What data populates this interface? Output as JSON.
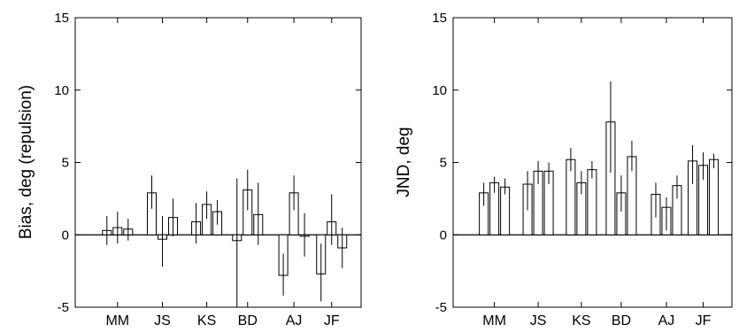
{
  "chart_data": [
    {
      "type": "bar",
      "ylabel": "Bias, deg (repulsion)",
      "xlabel": "",
      "ylim": [
        -5,
        15
      ],
      "yticks": [
        -5,
        0,
        5,
        10,
        15
      ],
      "categories": [
        "MM",
        "JS",
        "KS",
        "BD",
        "AJ",
        "JF"
      ],
      "bars_per_category": 3,
      "values": [
        [
          0.3,
          0.5,
          0.4
        ],
        [
          2.9,
          -0.3,
          1.2
        ],
        [
          0.9,
          2.1,
          1.6
        ],
        [
          -0.4,
          3.1,
          1.4
        ],
        [
          -2.8,
          2.9,
          -0.1
        ],
        [
          -2.7,
          0.9,
          -0.9
        ]
      ],
      "errors": [
        [
          [
            -0.7,
            1.3
          ],
          [
            -0.6,
            1.6
          ],
          [
            -0.4,
            1.1
          ]
        ],
        [
          [
            1.8,
            4.1
          ],
          [
            -2.2,
            1.3
          ],
          [
            -0.1,
            2.5
          ]
        ],
        [
          [
            -0.6,
            2.2
          ],
          [
            1.1,
            3.0
          ],
          [
            0.7,
            2.4
          ]
        ],
        [
          [
            -5.0,
            3.9
          ],
          [
            1.7,
            4.5
          ],
          [
            -0.7,
            3.6
          ]
        ],
        [
          [
            -4.2,
            -1.3
          ],
          [
            1.7,
            4.1
          ],
          [
            -1.5,
            1.5
          ]
        ],
        [
          [
            -4.6,
            -0.6
          ],
          [
            -0.7,
            2.8
          ],
          [
            -2.3,
            0.5
          ]
        ]
      ]
    },
    {
      "type": "bar",
      "ylabel": "JND, deg",
      "xlabel": "",
      "ylim": [
        -5,
        15
      ],
      "yticks": [
        -5,
        0,
        5,
        10,
        15
      ],
      "categories": [
        "MM",
        "JS",
        "KS",
        "BD",
        "AJ",
        "JF"
      ],
      "bars_per_category": 3,
      "values": [
        [
          2.9,
          3.6,
          3.3
        ],
        [
          3.5,
          4.4,
          4.4
        ],
        [
          5.2,
          3.6,
          4.5
        ],
        [
          7.8,
          2.9,
          5.4
        ],
        [
          2.8,
          1.9,
          3.4
        ],
        [
          5.1,
          4.8,
          5.2
        ]
      ],
      "errors": [
        [
          [
            2.0,
            3.6
          ],
          [
            2.9,
            4.0
          ],
          [
            2.8,
            3.9
          ]
        ],
        [
          [
            1.7,
            4.4
          ],
          [
            3.5,
            5.1
          ],
          [
            3.5,
            5.0
          ]
        ],
        [
          [
            4.4,
            6.0
          ],
          [
            2.8,
            4.4
          ],
          [
            3.9,
            5.1
          ]
        ],
        [
          [
            4.3,
            10.6
          ],
          [
            1.6,
            4.1
          ],
          [
            4.4,
            6.5
          ]
        ],
        [
          [
            1.2,
            3.6
          ],
          [
            0.3,
            2.6
          ],
          [
            2.5,
            4.1
          ]
        ],
        [
          [
            3.5,
            6.2
          ],
          [
            3.8,
            5.7
          ],
          [
            4.6,
            5.6
          ]
        ]
      ]
    }
  ]
}
